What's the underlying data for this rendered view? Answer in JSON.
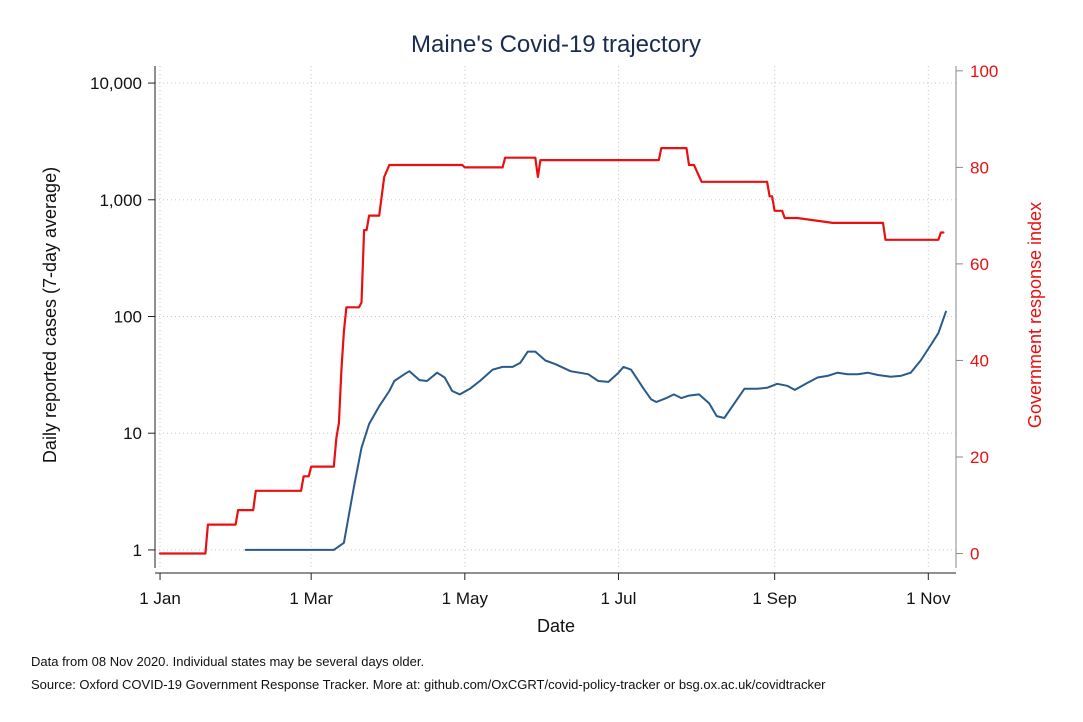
{
  "chart_data": {
    "type": "line",
    "title": "Maine's Covid-19 trajectory",
    "xlabel": "Date",
    "ylabel": "Daily reported cases (7-day average)",
    "y2label": "Government response index",
    "x_ticks": [
      "1 Jan",
      "1 Mar",
      "1 May",
      "1 Jul",
      "1 Sep",
      "1 Nov"
    ],
    "y_ticks": [
      "1",
      "10",
      "100",
      "1,000",
      "10,000"
    ],
    "y2_ticks": [
      "0",
      "20",
      "40",
      "60",
      "80",
      "100"
    ],
    "y_scale": "log",
    "ylim": [
      0.7,
      14000
    ],
    "y2lim": [
      -3,
      101
    ],
    "xlim": [
      "2019-12-30",
      "2020-11-12"
    ],
    "grid": true,
    "series": [
      {
        "axis": "left",
        "color": "#2a5a8a",
        "points": [
          [
            "2020-02-04",
            1
          ],
          [
            "2020-03-10",
            1
          ],
          [
            "2020-03-14",
            1.15
          ],
          [
            "2020-03-18",
            3.5
          ],
          [
            "2020-03-21",
            7.5
          ],
          [
            "2020-03-24",
            12
          ],
          [
            "2020-03-28",
            17
          ],
          [
            "2020-04-01",
            23
          ],
          [
            "2020-04-03",
            28
          ],
          [
            "2020-04-07",
            32
          ],
          [
            "2020-04-09",
            34
          ],
          [
            "2020-04-13",
            28.5
          ],
          [
            "2020-04-16",
            28
          ],
          [
            "2020-04-20",
            33
          ],
          [
            "2020-04-23",
            30
          ],
          [
            "2020-04-26",
            23
          ],
          [
            "2020-04-29",
            21.5
          ],
          [
            "2020-05-03",
            24
          ],
          [
            "2020-05-07",
            28
          ],
          [
            "2020-05-12",
            35
          ],
          [
            "2020-05-16",
            37
          ],
          [
            "2020-05-20",
            37
          ],
          [
            "2020-05-23",
            40
          ],
          [
            "2020-05-26",
            50
          ],
          [
            "2020-05-29",
            50
          ],
          [
            "2020-06-02",
            42
          ],
          [
            "2020-06-06",
            39
          ],
          [
            "2020-06-12",
            34
          ],
          [
            "2020-06-19",
            32
          ],
          [
            "2020-06-23",
            28
          ],
          [
            "2020-06-27",
            27.5
          ],
          [
            "2020-07-01",
            33
          ],
          [
            "2020-07-03",
            37
          ],
          [
            "2020-07-06",
            35
          ],
          [
            "2020-07-11",
            24
          ],
          [
            "2020-07-14",
            19.5
          ],
          [
            "2020-07-16",
            18.5
          ],
          [
            "2020-07-20",
            20
          ],
          [
            "2020-07-23",
            21.5
          ],
          [
            "2020-07-26",
            20
          ],
          [
            "2020-07-29",
            21
          ],
          [
            "2020-08-02",
            21.5
          ],
          [
            "2020-08-06",
            18
          ],
          [
            "2020-08-09",
            14
          ],
          [
            "2020-08-12",
            13.5
          ],
          [
            "2020-08-16",
            18
          ],
          [
            "2020-08-20",
            24
          ],
          [
            "2020-08-25",
            24
          ],
          [
            "2020-08-29",
            24.5
          ],
          [
            "2020-09-02",
            26.5
          ],
          [
            "2020-09-06",
            25.5
          ],
          [
            "2020-09-09",
            23.5
          ],
          [
            "2020-09-14",
            27
          ],
          [
            "2020-09-18",
            30
          ],
          [
            "2020-09-22",
            31
          ],
          [
            "2020-09-26",
            33
          ],
          [
            "2020-09-30",
            32
          ],
          [
            "2020-10-04",
            32
          ],
          [
            "2020-10-08",
            33
          ],
          [
            "2020-10-12",
            31.5
          ],
          [
            "2020-10-17",
            30.5
          ],
          [
            "2020-10-21",
            31
          ],
          [
            "2020-10-25",
            33
          ],
          [
            "2020-10-29",
            42
          ],
          [
            "2020-11-02",
            57
          ],
          [
            "2020-11-05",
            72
          ],
          [
            "2020-11-08",
            110
          ]
        ]
      },
      {
        "axis": "right",
        "color": "#e81010",
        "points": [
          [
            "2020-01-01",
            0
          ],
          [
            "2020-01-19",
            0
          ],
          [
            "2020-01-20",
            6
          ],
          [
            "2020-01-31",
            6
          ],
          [
            "2020-02-01",
            9
          ],
          [
            "2020-02-07",
            9
          ],
          [
            "2020-02-08",
            13
          ],
          [
            "2020-02-26",
            13
          ],
          [
            "2020-02-27",
            16
          ],
          [
            "2020-02-29",
            16
          ],
          [
            "2020-03-01",
            18
          ],
          [
            "2020-03-10",
            18
          ],
          [
            "2020-03-11",
            24
          ],
          [
            "2020-03-12",
            27
          ],
          [
            "2020-03-13",
            38
          ],
          [
            "2020-03-14",
            46
          ],
          [
            "2020-03-15",
            51
          ],
          [
            "2020-03-20",
            51
          ],
          [
            "2020-03-21",
            52
          ],
          [
            "2020-03-22",
            67
          ],
          [
            "2020-03-23",
            67
          ],
          [
            "2020-03-24",
            70
          ],
          [
            "2020-03-28",
            70
          ],
          [
            "2020-03-30",
            78
          ],
          [
            "2020-04-01",
            80.5
          ],
          [
            "2020-04-30",
            80.5
          ],
          [
            "2020-05-01",
            80
          ],
          [
            "2020-05-16",
            80
          ],
          [
            "2020-05-17",
            82
          ],
          [
            "2020-05-29",
            82
          ],
          [
            "2020-05-30",
            78
          ],
          [
            "2020-05-31",
            81.5
          ],
          [
            "2020-07-17",
            81.5
          ],
          [
            "2020-07-18",
            84
          ],
          [
            "2020-07-28",
            84
          ],
          [
            "2020-07-29",
            80.5
          ],
          [
            "2020-07-31",
            80.5
          ],
          [
            "2020-08-03",
            77
          ],
          [
            "2020-08-29",
            77
          ],
          [
            "2020-08-30",
            74
          ],
          [
            "2020-08-31",
            74
          ],
          [
            "2020-09-01",
            71
          ],
          [
            "2020-09-04",
            71
          ],
          [
            "2020-09-05",
            69.5
          ],
          [
            "2020-09-10",
            69.5
          ],
          [
            "2020-09-24",
            68.5
          ],
          [
            "2020-10-14",
            68.5
          ],
          [
            "2020-10-15",
            65
          ],
          [
            "2020-11-05",
            65
          ],
          [
            "2020-11-06",
            66.5
          ],
          [
            "2020-11-07",
            66.5
          ]
        ]
      }
    ]
  },
  "footnotes": [
    "Data from 08 Nov 2020. Individual states may be several days older.",
    "Source: Oxford COVID-19 Government Response Tracker. More at: github.com/OxCGRT/covid-policy-tracker or bsg.ox.ac.uk/covidtracker"
  ]
}
